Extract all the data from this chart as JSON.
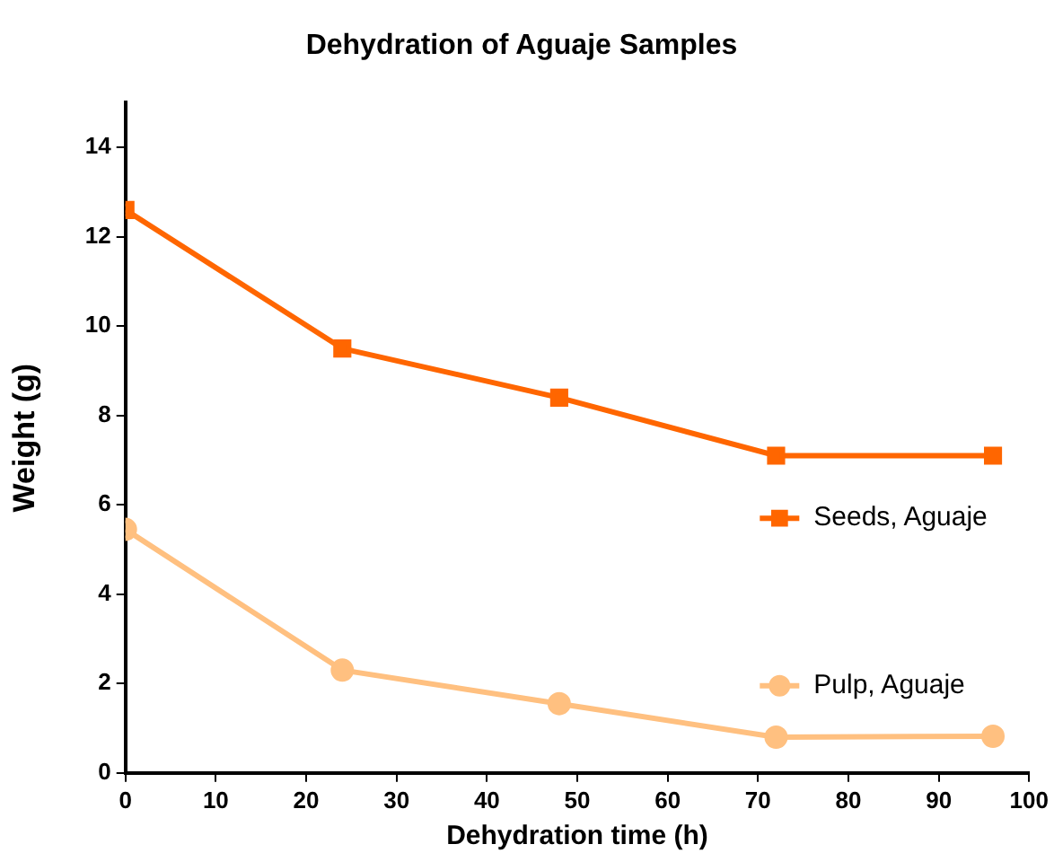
{
  "chart_data": {
    "type": "line",
    "title": "Dehydration of Aguaje Samples",
    "xlabel": "Dehydration time (h)",
    "ylabel": "Weight (g)",
    "xlim": [
      0,
      100
    ],
    "xticks": [
      0,
      10,
      20,
      30,
      40,
      50,
      60,
      70,
      80,
      90,
      100
    ],
    "ylim": [
      0,
      15
    ],
    "yticks": [
      0,
      2,
      4,
      6,
      8,
      10,
      12,
      14
    ],
    "grid": false,
    "legend": "right",
    "series": [
      {
        "name": "Seeds, Aguaje",
        "color": "#ff6600",
        "marker": "square",
        "x": [
          0,
          24,
          48,
          72,
          96
        ],
        "values": [
          12.6,
          9.5,
          8.4,
          7.1,
          7.1
        ]
      },
      {
        "name": "Pulp, Aguaje",
        "color": "#ffc080",
        "marker": "circle",
        "x": [
          0,
          24,
          48,
          72,
          96
        ],
        "values": [
          5.45,
          2.3,
          1.55,
          0.8,
          0.82
        ]
      }
    ]
  }
}
